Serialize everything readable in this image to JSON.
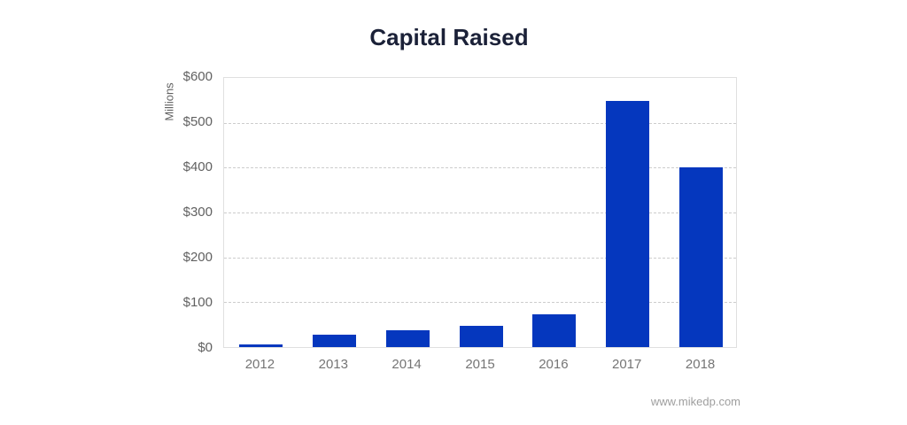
{
  "title": "Capital Raised",
  "watermark": "www.mikedp.com",
  "chart_data": {
    "type": "bar",
    "title": "Capital Raised",
    "xlabel": "",
    "ylabel": "Millions",
    "categories": [
      "2012",
      "2013",
      "2014",
      "2015",
      "2016",
      "2017",
      "2018"
    ],
    "values": [
      7,
      28,
      37,
      48,
      74,
      548,
      400
    ],
    "ylim": [
      0,
      600
    ],
    "y_tick_step": 100,
    "y_tick_labels": [
      "$0",
      "$100",
      "$200",
      "$300",
      "$400",
      "$500",
      "$600"
    ],
    "grid": "horizontal-dashed",
    "legend": "none",
    "bar_color": "#0537be"
  },
  "colors": {
    "background": "#ffffff",
    "bar": "#0537be",
    "title_text": "#1b2138",
    "axis_text": "#616161",
    "category_text": "#757575",
    "gridline": "#cccccc",
    "plot_border": "#e0e0e0",
    "watermark_text": "#9e9e9e"
  }
}
